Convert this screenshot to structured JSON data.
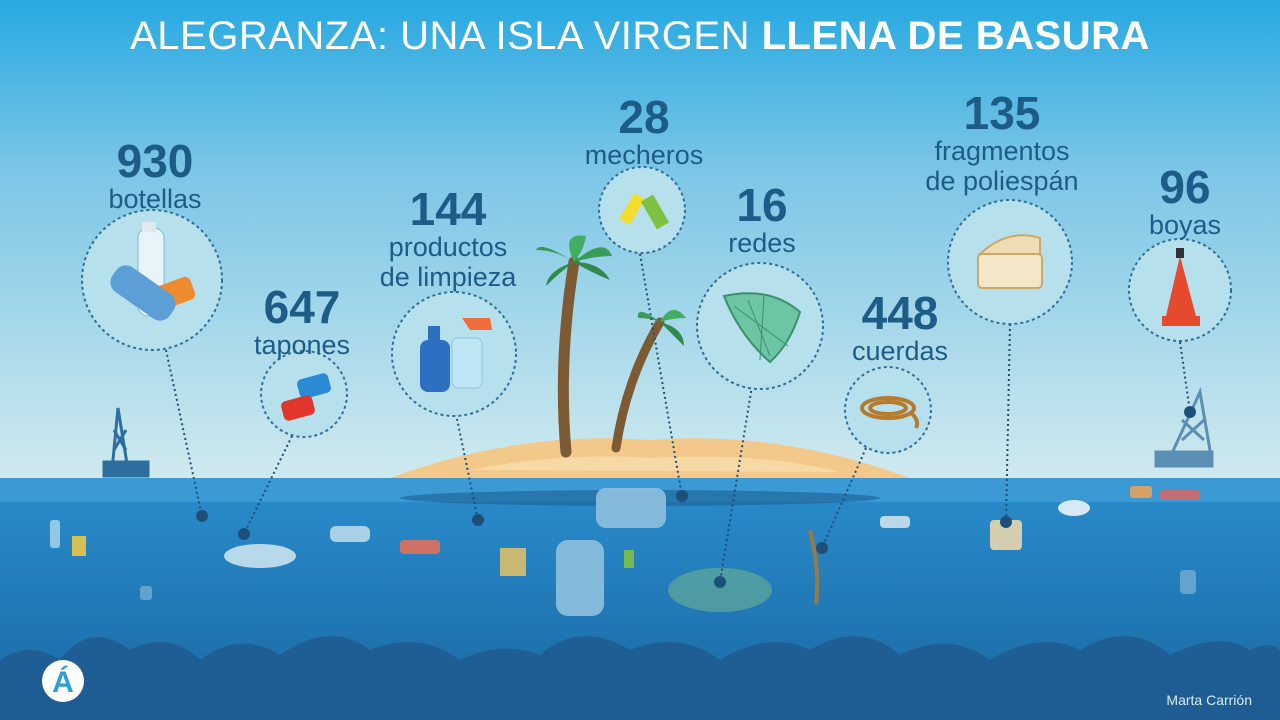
{
  "title": {
    "light": "ALEGRANZA: UNA ISLA VIRGEN",
    "bold": "LLENA DE BASURA"
  },
  "colors": {
    "sky_top": "#27a9e1",
    "sky_bottom": "#cfe8ee",
    "sea": "#1f79b7",
    "text": "#1d5c86",
    "sand": "#f3c98b"
  },
  "stats": [
    {
      "num": "930",
      "label": "botellas",
      "icon": "plastic-bottles-icon"
    },
    {
      "num": "647",
      "label": "tapones",
      "icon": "bottle-caps-icon"
    },
    {
      "num": "144",
      "label": "productos de limpieza",
      "label_lines": [
        "productos",
        "de limpieza"
      ],
      "icon": "cleaning-products-icon"
    },
    {
      "num": "28",
      "label": "mecheros",
      "icon": "lighters-icon"
    },
    {
      "num": "16",
      "label": "redes",
      "icon": "fishing-net-icon"
    },
    {
      "num": "448",
      "label": "cuerdas",
      "icon": "rope-icon"
    },
    {
      "num": "135",
      "label": "fragmentos de poliespán",
      "label_lines": [
        "fragmentos",
        "de poliespán"
      ],
      "icon": "polystyrene-box-icon"
    },
    {
      "num": "96",
      "label": "boyas",
      "icon": "buoy-icon"
    }
  ],
  "logo": "Á",
  "credit": "Marta Carrión"
}
